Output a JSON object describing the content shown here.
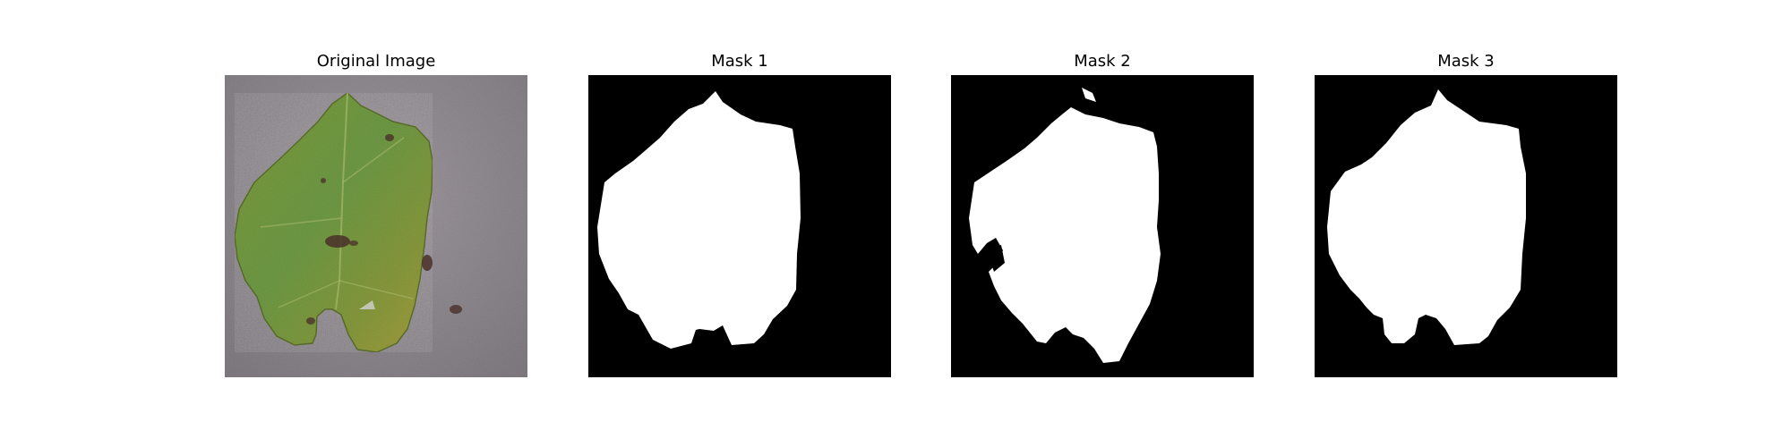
{
  "panels": [
    {
      "title": "Original Image"
    },
    {
      "title": "Mask 1"
    },
    {
      "title": "Mask 2"
    },
    {
      "title": "Mask 3"
    }
  ],
  "colors": {
    "background": "#ffffff",
    "mask_background": "#000000",
    "mask_foreground": "#ffffff",
    "photo_background": "#8f8a8d",
    "leaf_green": "#6f963c",
    "leaf_yellow": "#a8a640",
    "leaf_spot": "#4a2f2a"
  },
  "icons": [
    "leaf-photo",
    "binary-mask"
  ]
}
